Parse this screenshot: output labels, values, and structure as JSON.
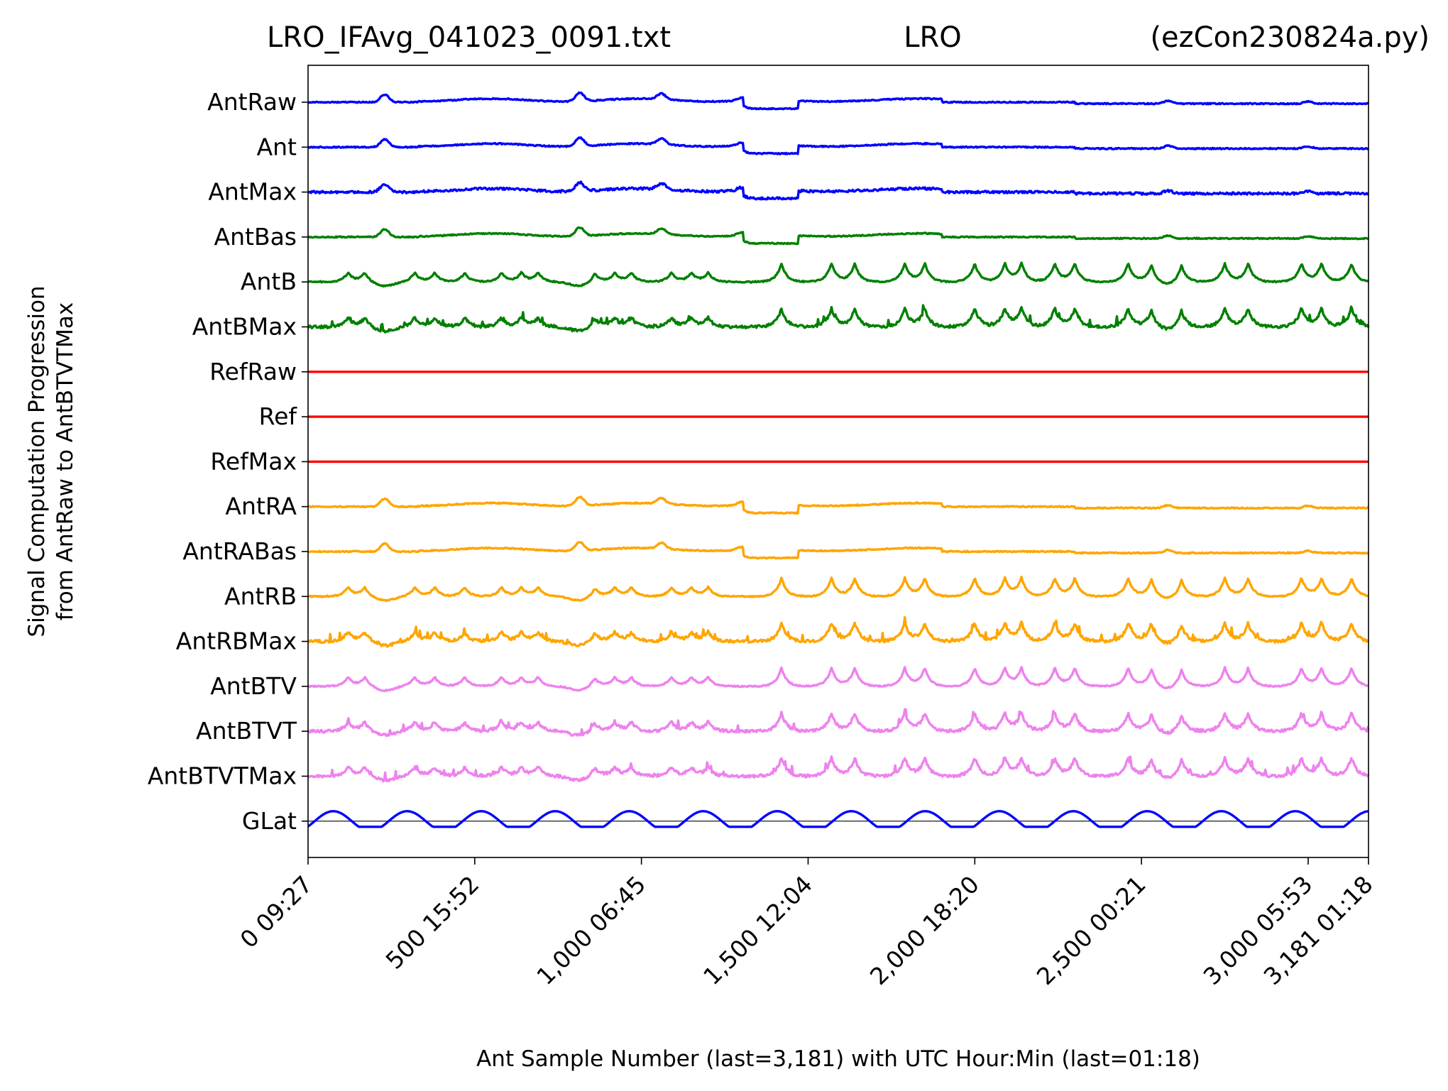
{
  "chart_data": {
    "type": "line",
    "title": {
      "left": "LRO_IFAvg_041023_0091.txt",
      "center": "LRO",
      "right": "(ezCon230824a.py)"
    },
    "xlabel": "Ant Sample Number (last=3,181) with UTC Hour:Min (last=01:18)",
    "ylabel_line1": "Signal Computation Progression",
    "ylabel_line2": "from AntRaw to AntBTVTMax",
    "xlim": [
      0,
      3181
    ],
    "grid": false,
    "legend": "none",
    "x_ticks": [
      {
        "value": 0,
        "label": "0  09:27"
      },
      {
        "value": 500,
        "label": "500  15:52"
      },
      {
        "value": 1000,
        "label": "1,000  06:45"
      },
      {
        "value": 1500,
        "label": "1,500  12:04"
      },
      {
        "value": 2000,
        "label": "2,000  18:20"
      },
      {
        "value": 2500,
        "label": "2,500  00:21"
      },
      {
        "value": 3000,
        "label": "3,000  05:53"
      },
      {
        "value": 3181,
        "label": "3,181  01:18"
      }
    ],
    "colors": {
      "blue": "#0000ff",
      "green": "#008000",
      "red": "#ff0000",
      "orange": "#ffa500",
      "violet": "#ee82ee",
      "baseline": "#000000"
    },
    "glat_baseline": true,
    "series": [
      {
        "label": "AntRaw",
        "color": "blue",
        "pattern": "smooth"
      },
      {
        "label": "Ant",
        "color": "blue",
        "pattern": "smooth"
      },
      {
        "label": "AntMax",
        "color": "blue",
        "pattern": "smooth_noisy"
      },
      {
        "label": "AntBas",
        "color": "green",
        "pattern": "smooth"
      },
      {
        "label": "AntB",
        "color": "green",
        "pattern": "peaks"
      },
      {
        "label": "AntBMax",
        "color": "green",
        "pattern": "peaks_noisy"
      },
      {
        "label": "RefRaw",
        "color": "red",
        "pattern": "flat"
      },
      {
        "label": "Ref",
        "color": "red",
        "pattern": "flat"
      },
      {
        "label": "RefMax",
        "color": "red",
        "pattern": "flat"
      },
      {
        "label": "AntRA",
        "color": "orange",
        "pattern": "smooth"
      },
      {
        "label": "AntRABas",
        "color": "orange",
        "pattern": "smooth"
      },
      {
        "label": "AntRB",
        "color": "orange",
        "pattern": "peaks"
      },
      {
        "label": "AntRBMax",
        "color": "orange",
        "pattern": "peaks_noisy"
      },
      {
        "label": "AntBTV",
        "color": "violet",
        "pattern": "peaks"
      },
      {
        "label": "AntBTVT",
        "color": "violet",
        "pattern": "peaks_noisy"
      },
      {
        "label": "AntBTVTMax",
        "color": "violet",
        "pattern": "peaks_noisy"
      },
      {
        "label": "GLat",
        "color": "blue",
        "pattern": "sine"
      }
    ]
  }
}
